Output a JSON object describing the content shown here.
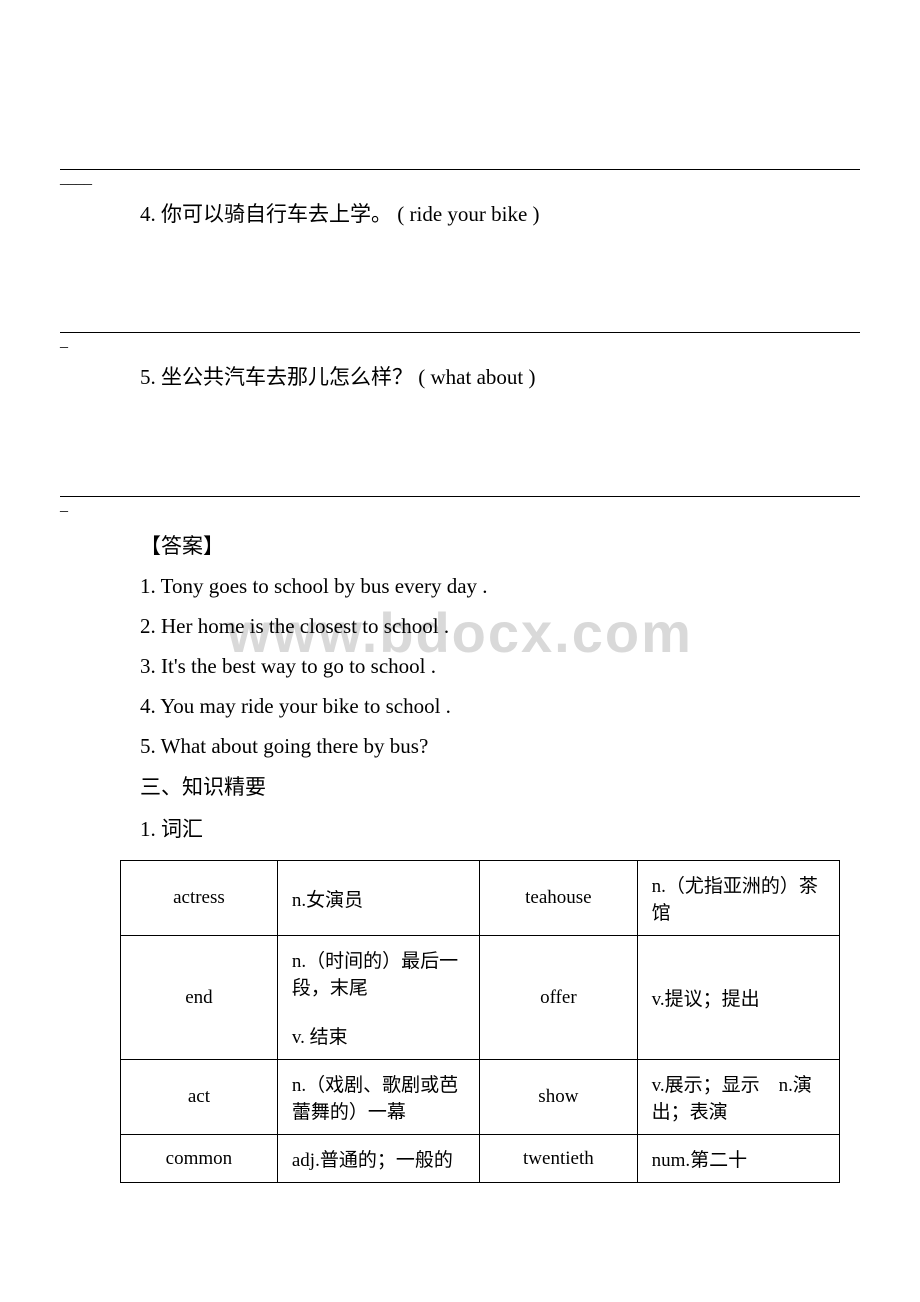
{
  "watermark": "www.bdocx.com",
  "fill_tail_1": "____",
  "question4": {
    "num": "4.",
    "zh": "你可以骑自行车去上学。",
    "hint": "( ride your bike )"
  },
  "fill_tail_2": "_",
  "question5": {
    "num": "5.",
    "zh": "坐公共汽车去那儿怎么样？",
    "hint": "( what about )"
  },
  "fill_tail_3": "_",
  "answers_heading": "【答案】",
  "answers": [
    "1. Tony goes to school by bus every day .",
    "2. Her home is the closest to school .",
    "3. It's the best way to go to school .",
    "4. You may ride your bike to school .",
    "5. What about going there by bus?"
  ],
  "section3": "三、知识精要",
  "sub1": "1. 词汇",
  "vocab": {
    "rows": [
      {
        "w1": "actress",
        "d1": "n.女演员",
        "w2": "teahouse",
        "d2": "n.（尤指亚洲的）茶馆"
      },
      {
        "w1": "end",
        "d1": "n.（时间的）最后一段，末尾\n\nv. 结束",
        "w2": "offer",
        "d2": "v.提议；提出"
      },
      {
        "w1": "act",
        "d1": "n.（戏剧、歌剧或芭蕾舞的）一幕",
        "w2": "show",
        "d2": "v.展示；显示　n.演出；表演"
      },
      {
        "w1": "common",
        "d1": "adj.普通的；一般的",
        "w2": "twentieth",
        "d2": "num.第二十"
      }
    ]
  },
  "colors": {
    "text": "#000000",
    "watermark": "#d9d9d9",
    "border": "#000000",
    "bg": "#ffffff"
  }
}
